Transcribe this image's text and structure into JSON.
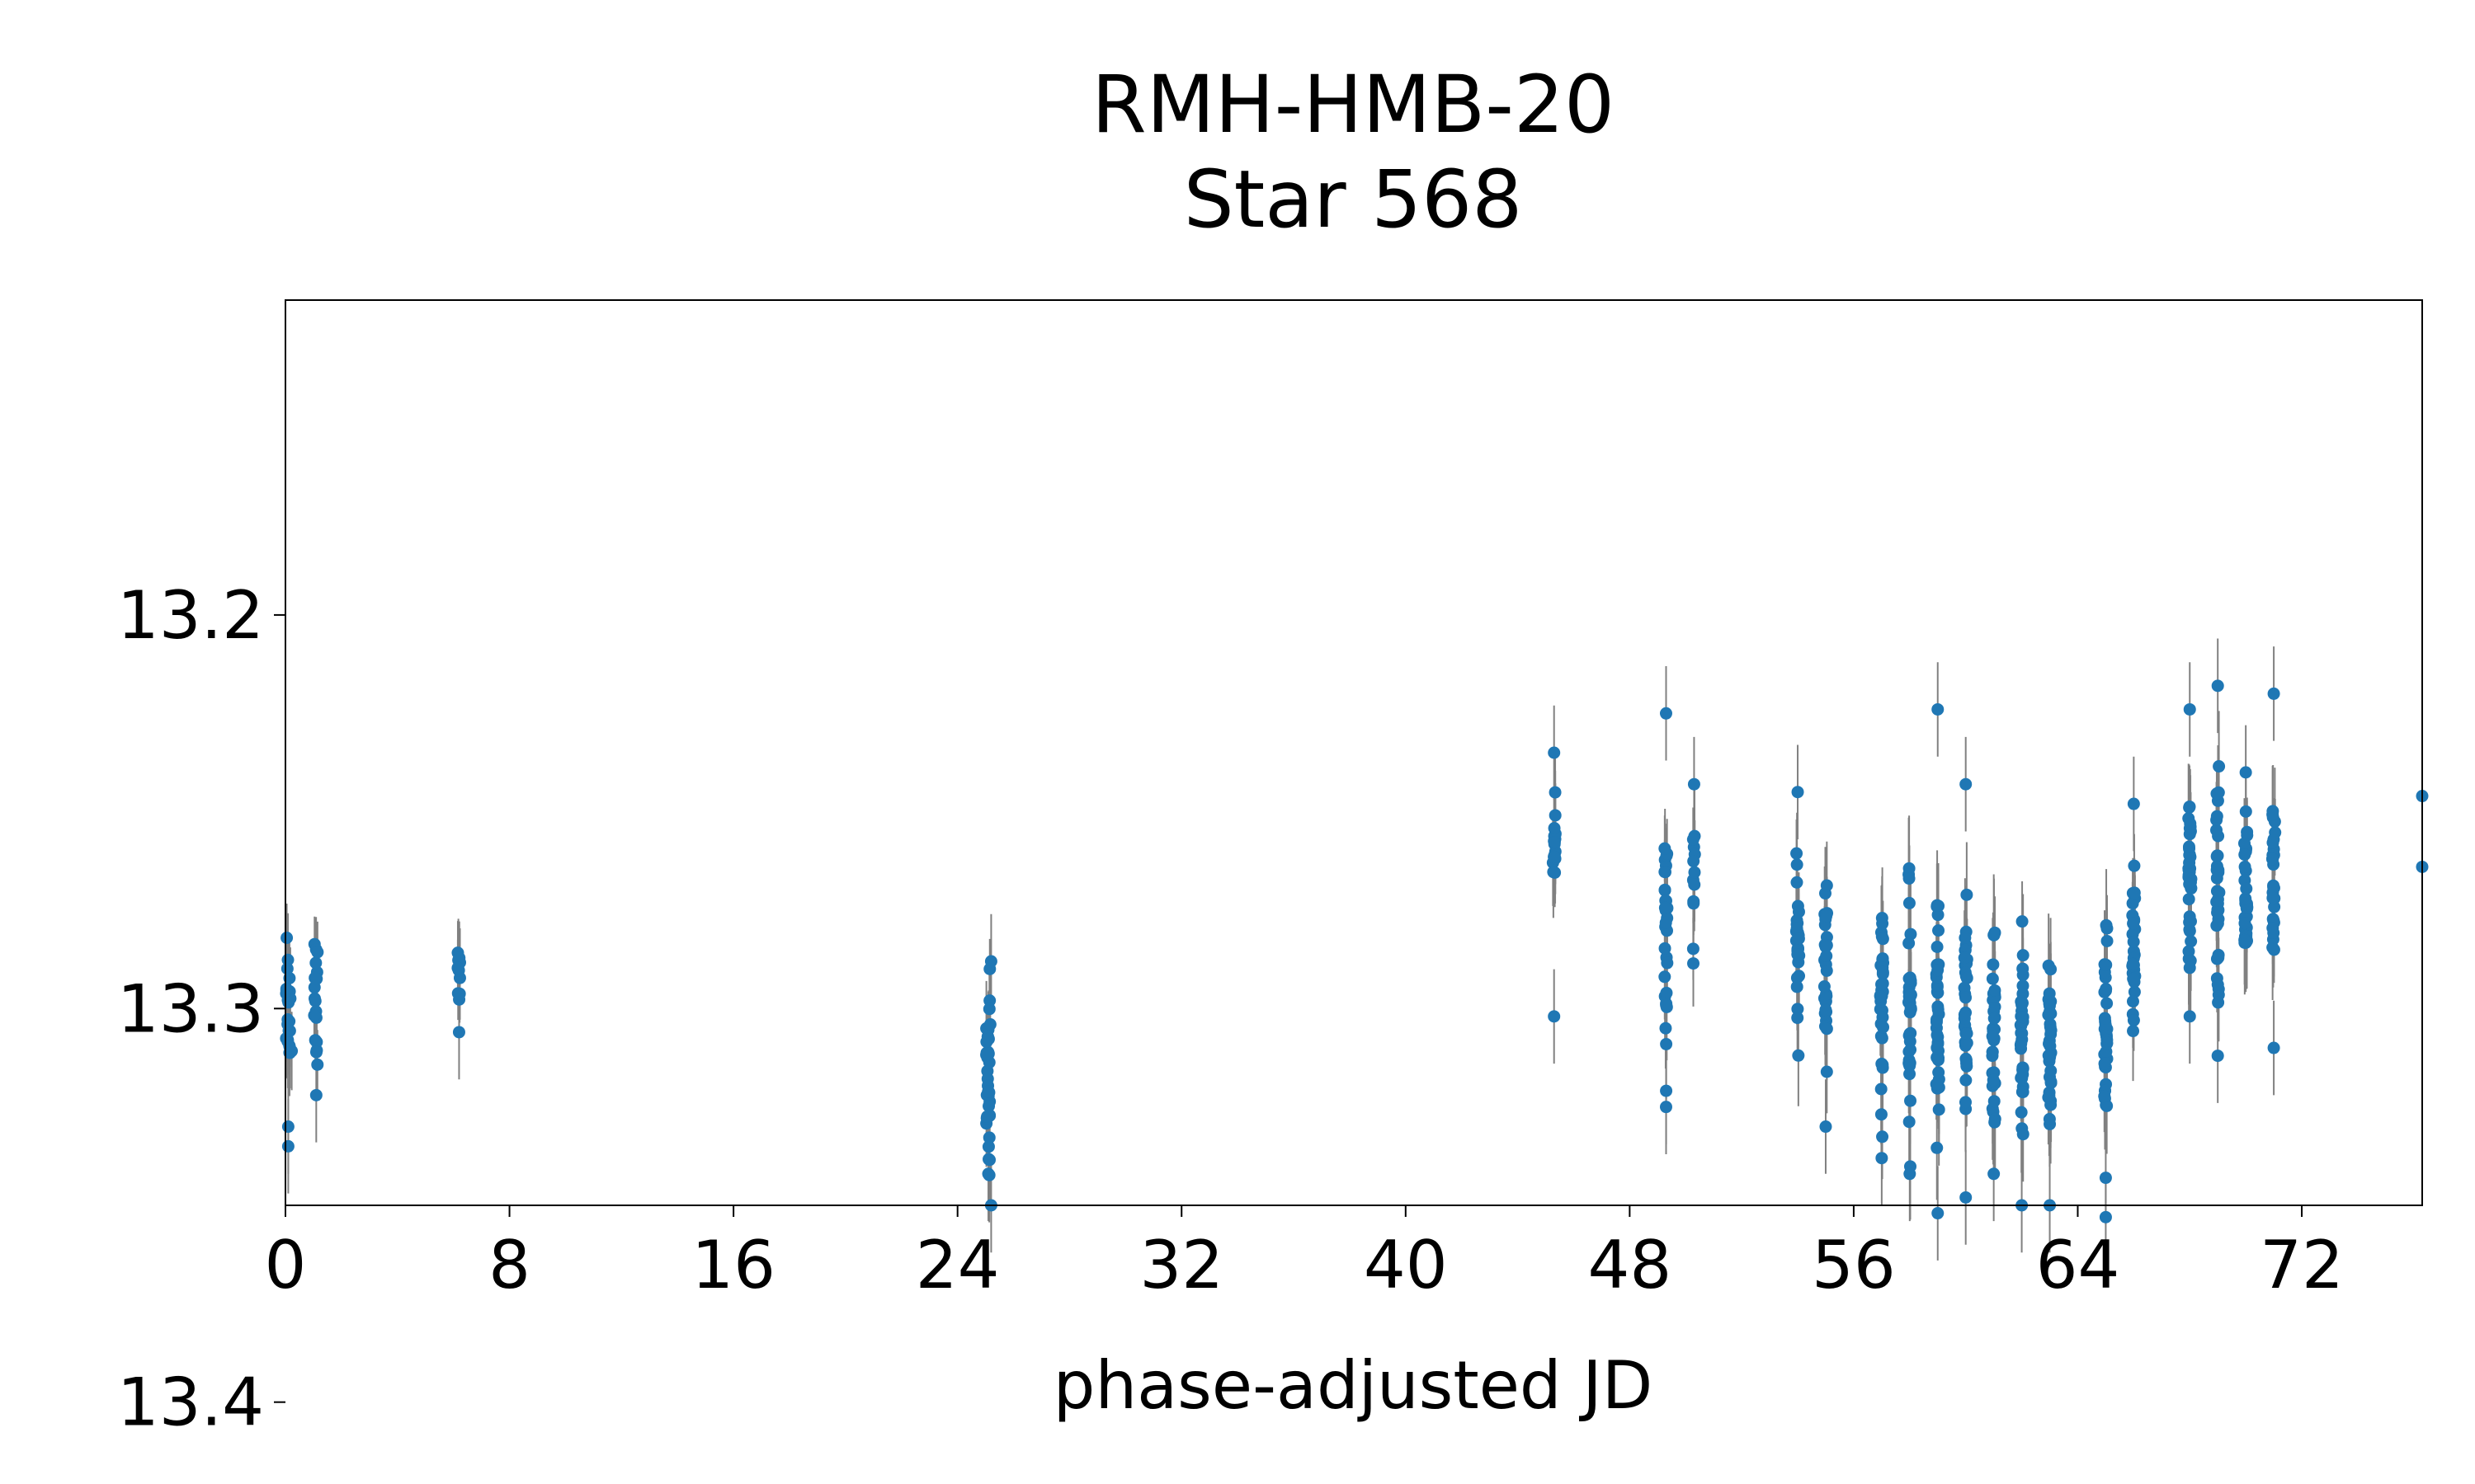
{
  "chart_data": {
    "type": "scatter",
    "title_line1": "RMH-HMB-20",
    "title_line2": "Star 568",
    "xlabel": "phase-adjusted JD",
    "ylabel": "",
    "xlim": [
      0,
      76.3
    ],
    "ylim": [
      13.35,
      13.12
    ],
    "y_inverted": true,
    "x_ticks": [
      "0",
      "8",
      "16",
      "24",
      "32",
      "40",
      "48",
      "56",
      "64",
      "72"
    ],
    "y_ticks": [
      "13.2",
      "13.3",
      "13.4"
    ],
    "grid": false,
    "legend": "none",
    "marker_color": "#1f77b4",
    "errorbar_color": "#808080",
    "clusters": [
      {
        "x": 0.1,
        "center": 13.3,
        "spread": 0.02,
        "n": 24,
        "err": 0.01,
        "width": 0.25
      },
      {
        "x": 1.1,
        "center": 13.296,
        "spread": 0.02,
        "n": 18,
        "err": 0.009,
        "width": 0.15
      },
      {
        "x": 6.2,
        "center": 13.29,
        "spread": 0.01,
        "n": 10,
        "err": 0.009,
        "width": 0.1
      },
      {
        "x": 25.1,
        "center": 13.318,
        "spread": 0.022,
        "n": 36,
        "err": 0.01,
        "width": 0.15
      },
      {
        "x": 45.3,
        "center": 13.258,
        "spread": 0.012,
        "n": 18,
        "err": 0.01,
        "width": 0.1
      },
      {
        "x": 49.3,
        "center": 13.282,
        "spread": 0.03,
        "n": 30,
        "err": 0.011,
        "width": 0.1
      },
      {
        "x": 50.3,
        "center": 13.27,
        "spread": 0.016,
        "n": 12,
        "err": 0.01,
        "width": 0.1
      },
      {
        "x": 54.0,
        "center": 13.282,
        "spread": 0.022,
        "n": 28,
        "err": 0.011,
        "width": 0.1
      },
      {
        "x": 55.0,
        "center": 13.29,
        "spread": 0.024,
        "n": 30,
        "err": 0.011,
        "width": 0.1
      },
      {
        "x": 57.0,
        "center": 13.3,
        "spread": 0.024,
        "n": 34,
        "err": 0.012,
        "width": 0.1
      },
      {
        "x": 58.0,
        "center": 13.302,
        "spread": 0.026,
        "n": 36,
        "err": 0.012,
        "width": 0.1
      },
      {
        "x": 59.0,
        "center": 13.3,
        "spread": 0.03,
        "n": 38,
        "err": 0.012,
        "width": 0.1
      },
      {
        "x": 60.0,
        "center": 13.302,
        "spread": 0.026,
        "n": 34,
        "err": 0.012,
        "width": 0.1
      },
      {
        "x": 61.0,
        "center": 13.306,
        "spread": 0.022,
        "n": 34,
        "err": 0.012,
        "width": 0.1
      },
      {
        "x": 62.0,
        "center": 13.304,
        "spread": 0.024,
        "n": 34,
        "err": 0.012,
        "width": 0.1
      },
      {
        "x": 63.0,
        "center": 13.308,
        "spread": 0.024,
        "n": 34,
        "err": 0.012,
        "width": 0.1
      },
      {
        "x": 65.0,
        "center": 13.302,
        "spread": 0.026,
        "n": 36,
        "err": 0.012,
        "width": 0.1
      },
      {
        "x": 66.0,
        "center": 13.286,
        "spread": 0.022,
        "n": 28,
        "err": 0.011,
        "width": 0.1
      },
      {
        "x": 68.0,
        "center": 13.27,
        "spread": 0.022,
        "n": 36,
        "err": 0.011,
        "width": 0.1
      },
      {
        "x": 69.0,
        "center": 13.268,
        "spread": 0.024,
        "n": 36,
        "err": 0.011,
        "width": 0.1
      },
      {
        "x": 70.0,
        "center": 13.272,
        "spread": 0.02,
        "n": 34,
        "err": 0.011,
        "width": 0.1
      },
      {
        "x": 71.0,
        "center": 13.27,
        "spread": 0.02,
        "n": 28,
        "err": 0.011,
        "width": 0.1
      }
    ],
    "outliers": [
      [
        0.1,
        13.33
      ],
      [
        0.1,
        13.335
      ],
      [
        1.1,
        13.322
      ],
      [
        6.2,
        13.306
      ],
      [
        25.2,
        13.35
      ],
      [
        25.1,
        13.342
      ],
      [
        25.2,
        13.288
      ],
      [
        45.3,
        13.302
      ],
      [
        45.3,
        13.235
      ],
      [
        49.3,
        13.225
      ],
      [
        49.3,
        13.325
      ],
      [
        50.3,
        13.243
      ],
      [
        54.0,
        13.245
      ],
      [
        55.0,
        13.33
      ],
      [
        57.0,
        13.338
      ],
      [
        58.0,
        13.342
      ],
      [
        59.0,
        13.224
      ],
      [
        59.0,
        13.352
      ],
      [
        60.0,
        13.243
      ],
      [
        60.0,
        13.348
      ],
      [
        61.0,
        13.342
      ],
      [
        62.0,
        13.35
      ],
      [
        63.0,
        13.35
      ],
      [
        65.0,
        13.353
      ],
      [
        65.0,
        13.343
      ],
      [
        66.0,
        13.248
      ],
      [
        68.0,
        13.224
      ],
      [
        68.0,
        13.302
      ],
      [
        69.0,
        13.218
      ],
      [
        69.0,
        13.312
      ],
      [
        70.0,
        13.24
      ],
      [
        71.0,
        13.22
      ],
      [
        71.0,
        13.31
      ],
      [
        76.3,
        13.246
      ],
      [
        76.3,
        13.264
      ]
    ]
  }
}
